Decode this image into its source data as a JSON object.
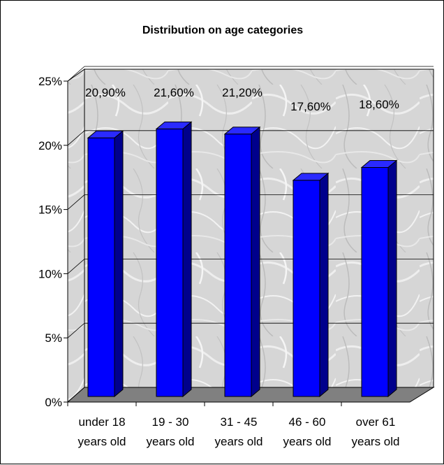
{
  "chart_data": {
    "type": "bar",
    "title": "Distribution on age categories",
    "categories": [
      [
        "under 18",
        "years old"
      ],
      [
        "19 - 30",
        "years old"
      ],
      [
        "31 - 45",
        "years old"
      ],
      [
        "46 - 60",
        "years old"
      ],
      [
        "over 61",
        "years old"
      ]
    ],
    "values": [
      20.9,
      21.6,
      21.2,
      17.6,
      18.6
    ],
    "data_labels": [
      "20,90%",
      "21,60%",
      "21,20%",
      "17,60%",
      "18,60%"
    ],
    "yticks": [
      "0%",
      "5%",
      "10%",
      "15%",
      "20%",
      "25%"
    ],
    "ylim": [
      0,
      25
    ],
    "grid": true,
    "legend": "none",
    "bar_color": "#0000ff",
    "bar_side_color": "#00008c",
    "bar_top_color": "#2a2aff",
    "floor_color": "#808080",
    "wall_color": "#d9d9d9"
  }
}
